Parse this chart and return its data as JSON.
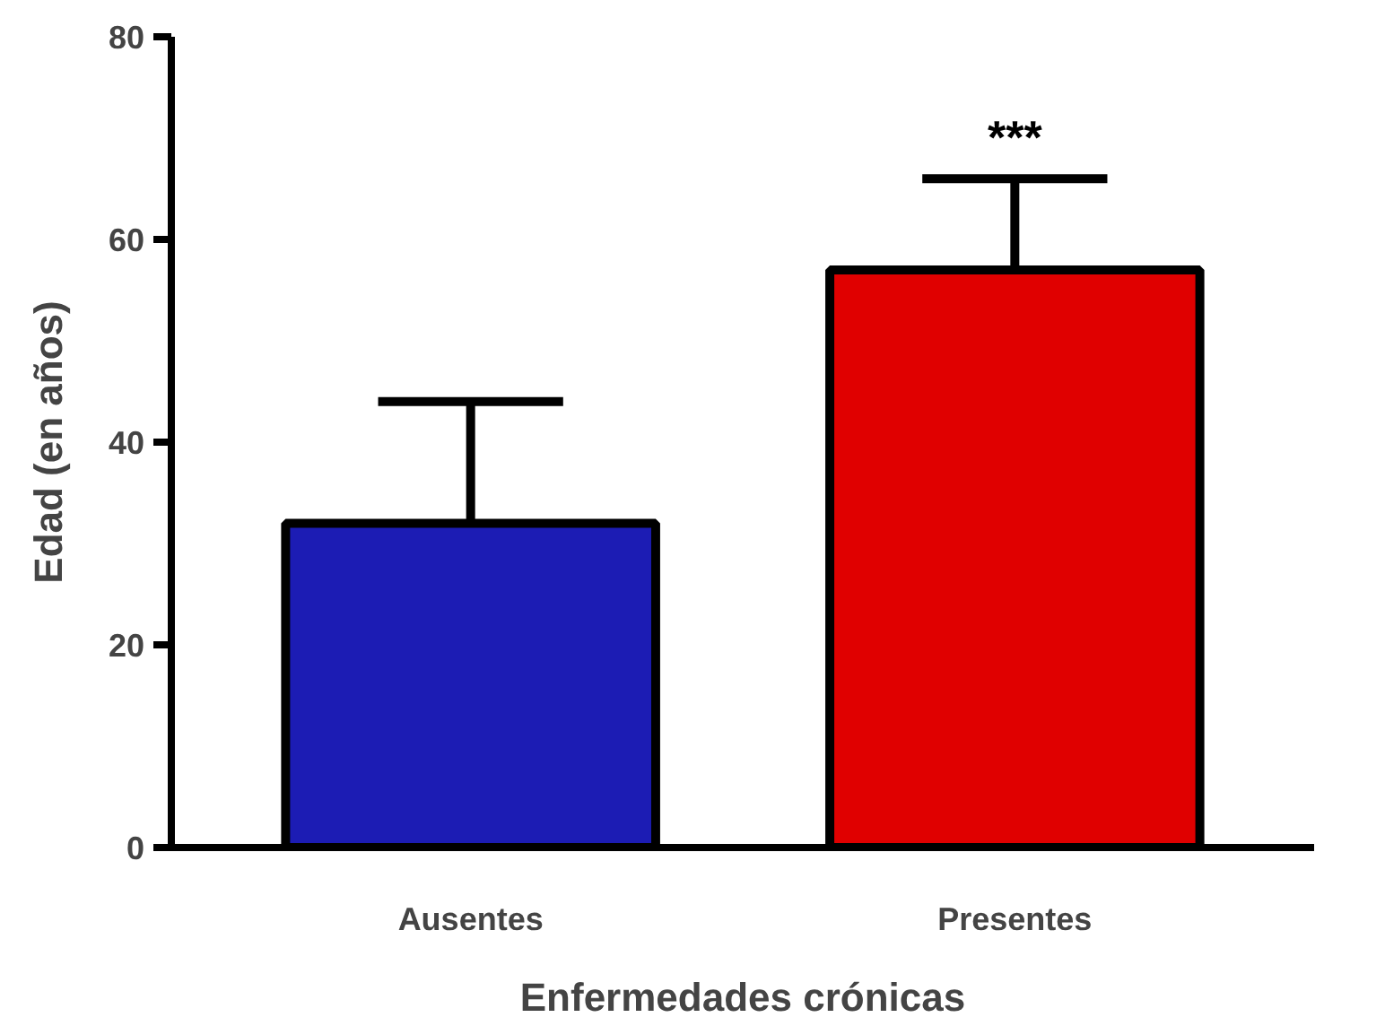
{
  "chart_data": {
    "type": "bar",
    "xlabel": "Enfermedades crónicas",
    "ylabel": "Edad (en años)",
    "categories": [
      "Ausentes",
      "Presentes"
    ],
    "values": [
      32,
      57
    ],
    "colors": [
      "#1c1cb4",
      "#e00000"
    ],
    "errors": [
      12,
      9
    ],
    "ylim": [
      0,
      80
    ],
    "yticks": [
      0,
      20,
      40,
      60,
      80
    ],
    "grid": false,
    "annotations": [
      "***"
    ]
  }
}
